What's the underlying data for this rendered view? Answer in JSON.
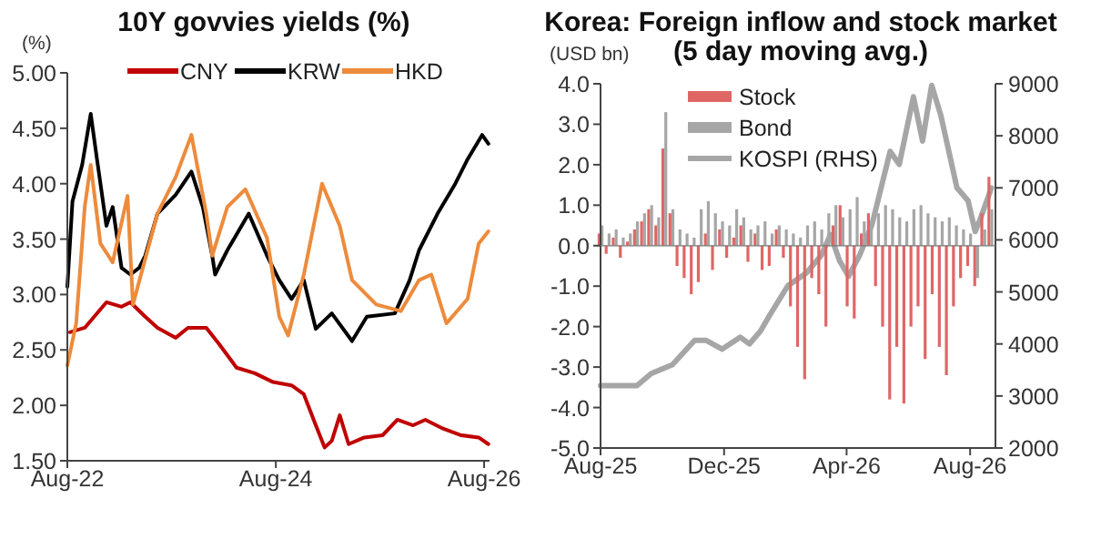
{
  "chart_data": [
    {
      "type": "line",
      "title": "10Y govvies yields (%)",
      "ylabel": "(%)",
      "legend": "top",
      "line_style": "solid",
      "xlim": [
        "2022-08-01",
        "2026-08-20"
      ],
      "xticks": [
        {
          "value": "2022-08-01",
          "label": "Aug-22"
        },
        {
          "value": "2024-08-01",
          "label": "Aug-24"
        },
        {
          "value": "2026-08-01",
          "label": "Aug-26"
        }
      ],
      "ylim": [
        1.5,
        5
      ],
      "yticks": [
        {
          "value": 1.5,
          "label": "1.50"
        },
        {
          "value": 2,
          "label": "2.00"
        },
        {
          "value": 2.5,
          "label": "2.50"
        },
        {
          "value": 3,
          "label": "3.00"
        },
        {
          "value": 3.5,
          "label": "3.50"
        },
        {
          "value": 4,
          "label": "4.00"
        },
        {
          "value": 4.5,
          "label": "4.50"
        },
        {
          "value": 5,
          "label": "5.00"
        }
      ],
      "series": [
        {
          "name": "CNY",
          "color": "#c00000",
          "x": [
            "2022-08-10",
            "2022-10-01",
            "2022-12-16",
            "2023-02-07",
            "2023-03-10",
            "2023-05-01",
            "2023-06-13",
            "2023-08-16",
            "2023-09-28",
            "2023-12-01",
            "2024-01-13",
            "2024-03-16",
            "2024-05-19",
            "2024-07-22",
            "2024-09-25",
            "2024-11-07",
            "2024-12-19",
            "2025-01-19",
            "2025-02-13",
            "2025-03-13",
            "2025-04-13",
            "2025-06-07",
            "2025-08-10",
            "2025-10-01",
            "2025-11-25",
            "2026-01-07",
            "2026-03-10",
            "2026-05-13",
            "2026-07-13",
            "2026-08-16"
          ],
          "values": [
            2.66,
            2.7,
            2.93,
            2.89,
            2.93,
            2.8,
            2.7,
            2.61,
            2.7,
            2.7,
            2.56,
            2.34,
            2.29,
            2.21,
            2.18,
            2.1,
            1.82,
            1.62,
            1.68,
            1.91,
            1.65,
            1.71,
            1.73,
            1.87,
            1.82,
            1.87,
            1.79,
            1.73,
            1.71,
            1.65
          ]
        },
        {
          "name": "KRW",
          "color": "#000000",
          "x": [
            "2022-08-01",
            "2022-08-19",
            "2022-09-22",
            "2022-10-22",
            "2022-11-13",
            "2022-12-16",
            "2023-01-07",
            "2023-02-07",
            "2023-03-10",
            "2023-04-10",
            "2023-05-01",
            "2023-06-13",
            "2023-08-16",
            "2023-10-10",
            "2023-11-19",
            "2023-12-22",
            "2024-01-01",
            "2024-02-13",
            "2024-04-28",
            "2024-07-01",
            "2024-08-13",
            "2024-09-25",
            "2024-11-07",
            "2024-12-19",
            "2025-02-13",
            "2025-04-25",
            "2025-06-16",
            "2025-09-22",
            "2025-11-13",
            "2025-12-16",
            "2026-02-19",
            "2026-04-22",
            "2026-06-04",
            "2026-07-25",
            "2026-08-16"
          ],
          "values": [
            3.07,
            3.84,
            4.17,
            4.63,
            4.22,
            3.62,
            3.79,
            3.24,
            3.18,
            3.24,
            3.35,
            3.73,
            3.9,
            4.11,
            3.79,
            3.35,
            3.18,
            3.4,
            3.73,
            3.35,
            3.13,
            2.96,
            3.13,
            2.69,
            2.83,
            2.58,
            2.8,
            2.83,
            3.13,
            3.4,
            3.73,
            4.0,
            4.22,
            4.44,
            4.36
          ]
        },
        {
          "name": "HKD",
          "color": "#ed8b3c",
          "x": [
            "2022-08-01",
            "2022-09-01",
            "2022-10-01",
            "2022-10-22",
            "2022-11-25",
            "2023-01-07",
            "2023-02-28",
            "2023-03-19",
            "2023-06-13",
            "2023-08-16",
            "2023-10-10",
            "2023-12-01",
            "2023-12-22",
            "2024-02-13",
            "2024-04-16",
            "2024-07-01",
            "2024-08-13",
            "2024-09-13",
            "2024-11-07",
            "2025-01-10",
            "2025-03-13",
            "2025-04-25",
            "2025-07-19",
            "2025-10-13",
            "2025-12-16",
            "2026-01-28",
            "2026-03-22",
            "2026-06-04",
            "2026-07-13",
            "2026-08-16"
          ],
          "values": [
            2.36,
            2.74,
            3.79,
            4.17,
            3.46,
            3.29,
            3.89,
            2.91,
            3.73,
            4.06,
            4.44,
            3.73,
            3.35,
            3.79,
            3.95,
            3.51,
            2.8,
            2.63,
            3.18,
            4.0,
            3.62,
            3.13,
            2.91,
            2.85,
            3.13,
            3.18,
            2.74,
            2.96,
            3.46,
            3.57
          ]
        }
      ]
    },
    {
      "type": "bar",
      "title": "Korea: Foreign inflow and stock market\n(5 day moving avg.)",
      "ylabel": "(USD bn)",
      "legend": "top left",
      "xlim": [
        "2025-08-01",
        "2026-08-26"
      ],
      "xticks": [
        {
          "value": "2025-08-01",
          "label": "Aug-25"
        },
        {
          "value": "2025-12-01",
          "label": "Dec-25"
        },
        {
          "value": "2026-04-01",
          "label": "Apr-26"
        },
        {
          "value": "2026-08-01",
          "label": "Aug-26"
        }
      ],
      "ylim": [
        -5,
        4
      ],
      "yticks": [
        {
          "value": -5,
          "label": "-5.0"
        },
        {
          "value": -4,
          "label": "-4.0"
        },
        {
          "value": -3,
          "label": "-3.0"
        },
        {
          "value": -2,
          "label": "-2.0"
        },
        {
          "value": -1,
          "label": "-1.0"
        },
        {
          "value": 0,
          "label": "0.0"
        },
        {
          "value": 1,
          "label": "1.0"
        },
        {
          "value": 2,
          "label": "2.0"
        },
        {
          "value": 3,
          "label": "3.0"
        },
        {
          "value": 4,
          "label": "4.0"
        }
      ],
      "y2lim": [
        2000,
        9000
      ],
      "y2ticks": [
        2000,
        3000,
        4000,
        5000,
        6000,
        7000,
        8000,
        9000
      ],
      "x": [
        "2025-08-01",
        "2025-08-08",
        "2025-08-15",
        "2025-08-22",
        "2025-08-29",
        "2025-09-05",
        "2025-09-12",
        "2025-09-19",
        "2025-09-26",
        "2025-10-03",
        "2025-10-10",
        "2025-10-17",
        "2025-10-24",
        "2025-10-31",
        "2025-11-07",
        "2025-11-14",
        "2025-11-21",
        "2025-11-28",
        "2025-12-05",
        "2025-12-12",
        "2025-12-19",
        "2025-12-26",
        "2026-01-02",
        "2026-01-09",
        "2026-01-16",
        "2026-01-23",
        "2026-01-30",
        "2026-02-06",
        "2026-02-13",
        "2026-02-20",
        "2026-02-27",
        "2026-03-06",
        "2026-03-13",
        "2026-03-20",
        "2026-03-27",
        "2026-04-03",
        "2026-04-10",
        "2026-04-17",
        "2026-04-24",
        "2026-05-01",
        "2026-05-08",
        "2026-05-15",
        "2026-05-22",
        "2026-05-29",
        "2026-06-05",
        "2026-06-12",
        "2026-06-19",
        "2026-06-26",
        "2026-07-03",
        "2026-07-10",
        "2026-07-17",
        "2026-07-24",
        "2026-07-31",
        "2026-08-07",
        "2026-08-14",
        "2026-08-21"
      ],
      "series": [
        {
          "name": "Stock",
          "color": "#e06666",
          "values": [
            0.3,
            -0.2,
            0.2,
            -0.3,
            0.1,
            0.4,
            0.6,
            0.9,
            0.5,
            2.4,
            0.8,
            -0.5,
            -0.8,
            -1.2,
            -0.9,
            0.3,
            -0.6,
            0.4,
            -0.3,
            0.2,
            0.5,
            -0.4,
            0.3,
            -0.6,
            -0.5,
            0.4,
            -0.3,
            -1.5,
            -2.5,
            -3.3,
            -0.8,
            -1.2,
            -2.0,
            0.5,
            1.0,
            -1.5,
            -1.8,
            0.3,
            0.8,
            -1.0,
            -2.0,
            -3.8,
            -2.5,
            -3.9,
            -2.0,
            -1.5,
            -2.8,
            -1.2,
            -2.5,
            -3.2,
            -1.5,
            -0.8,
            -0.5,
            -1.0,
            0.8,
            1.7
          ]
        },
        {
          "name": "Bond",
          "color": "#a6a6a6",
          "values": [
            0.5,
            0.3,
            0.4,
            0.2,
            0.3,
            0.6,
            0.8,
            1.0,
            0.7,
            3.3,
            0.9,
            0.4,
            0.3,
            0.2,
            0.9,
            1.1,
            0.8,
            0.6,
            0.5,
            0.9,
            0.7,
            0.4,
            0.5,
            0.6,
            0.3,
            0.5,
            0.4,
            0.3,
            0.2,
            0.5,
            0.6,
            0.4,
            0.8,
            1.0,
            0.7,
            0.9,
            1.2,
            0.6,
            0.5,
            0.8,
            1.0,
            0.9,
            0.7,
            0.6,
            0.9,
            1.0,
            0.8,
            0.7,
            0.6,
            0.7,
            0.5,
            0.4,
            0.3,
            -0.8,
            0.4,
            0.9
          ]
        },
        {
          "name": "KOSPI (RHS)",
          "type": "line",
          "axis": "y2",
          "color": "#a6a6a6",
          "x": [
            "2025-08-01",
            "2025-09-06",
            "2025-09-20",
            "2025-10-11",
            "2025-11-02",
            "2025-11-13",
            "2025-11-29",
            "2025-12-17",
            "2025-12-26",
            "2026-01-06",
            "2026-01-15",
            "2026-02-02",
            "2026-02-20",
            "2026-03-07",
            "2026-03-16",
            "2026-03-25",
            "2026-04-03",
            "2026-04-14",
            "2026-04-26",
            "2026-05-14",
            "2026-05-23",
            "2026-06-06",
            "2026-06-15",
            "2026-06-24",
            "2026-07-03",
            "2026-07-19",
            "2026-07-30",
            "2026-08-06",
            "2026-08-11",
            "2026-08-22"
          ],
          "values": [
            3200,
            3200,
            3430,
            3600,
            4070,
            4070,
            3900,
            4130,
            4000,
            4250,
            4550,
            5120,
            5360,
            5700,
            6100,
            5600,
            5300,
            5710,
            6290,
            7700,
            7450,
            8750,
            7900,
            8970,
            8400,
            7000,
            6750,
            6160,
            6400,
            7000
          ]
        }
      ]
    }
  ]
}
